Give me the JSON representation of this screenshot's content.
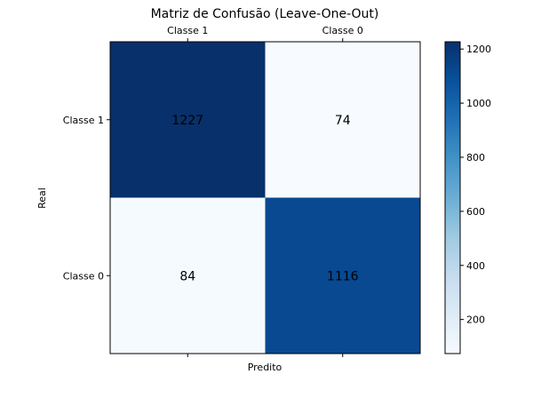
{
  "chart_data": {
    "type": "heatmap",
    "title": "Matriz de Confusão (Leave-One-Out)",
    "xlabel": "Predito",
    "ylabel": "Real",
    "x_categories": [
      "Classe 1",
      "Classe 0"
    ],
    "y_categories": [
      "Classe 1",
      "Classe 0"
    ],
    "values": [
      [
        1227,
        74
      ],
      [
        84,
        1116
      ]
    ],
    "colormap": "Blues",
    "colorbar": {
      "ticks": [
        200,
        400,
        600,
        800,
        1000,
        1200
      ],
      "range": [
        74,
        1227
      ]
    },
    "x_tick_position": "top"
  }
}
